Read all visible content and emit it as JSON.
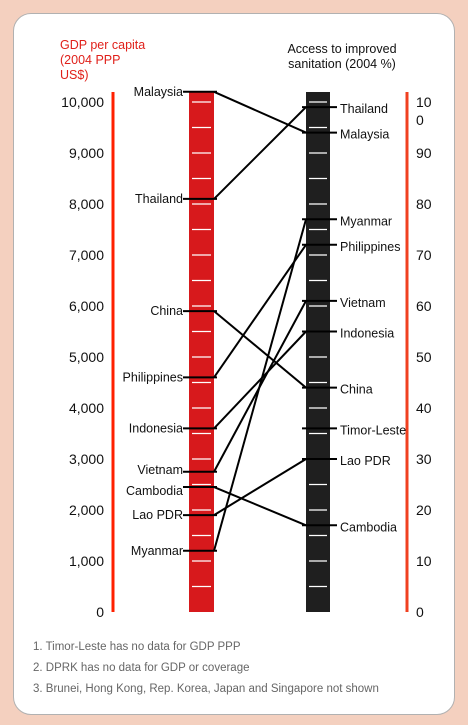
{
  "colors": {
    "gdp_bar": "#d7191c",
    "gdp_axis": "#ff2000",
    "gdp_title": "#e0201a",
    "sanitation_bar": "#1f1f1f",
    "sanitation_axis": "#f04020",
    "link": "#000000",
    "background": "#f4d0bf"
  },
  "chart_data": {
    "type": "parallel-axis",
    "left_axis": {
      "title": "GDP per capita (2004 PPP US$)",
      "ylim": [
        0,
        10000
      ],
      "ticks": [
        "0",
        "1,000",
        "2,000",
        "3,000",
        "4,000",
        "5,000",
        "6,000",
        "7,000",
        "8,000",
        "9,000",
        "10,000"
      ]
    },
    "right_axis": {
      "title": "Access to improved sanitation (2004 %)",
      "ylim": [
        0,
        100
      ],
      "ticks": [
        "0",
        "10",
        "20",
        "30",
        "40",
        "50",
        "60",
        "70",
        "80",
        "90",
        "10\n0"
      ]
    },
    "countries": [
      {
        "name": "Malaysia",
        "gdp": 10200,
        "sanitation": 94
      },
      {
        "name": "Thailand",
        "gdp": 8100,
        "sanitation": 99
      },
      {
        "name": "China",
        "gdp": 5900,
        "sanitation": 44
      },
      {
        "name": "Philippines",
        "gdp": 4600,
        "sanitation": 72
      },
      {
        "name": "Indonesia",
        "gdp": 3600,
        "sanitation": 55
      },
      {
        "name": "Vietnam",
        "gdp": 2750,
        "sanitation": 61
      },
      {
        "name": "Cambodia",
        "gdp": 2450,
        "sanitation": 17
      },
      {
        "name": "Lao PDR",
        "gdp": 1900,
        "sanitation": 30
      },
      {
        "name": "Myanmar",
        "gdp": 1200,
        "sanitation": 77
      },
      {
        "name": "Timor-Leste",
        "gdp": null,
        "sanitation": 36
      }
    ],
    "footnotes": [
      "1. Timor-Leste has no data for GDP PPP",
      "2. DPRK has no data for GDP or coverage",
      "3. Brunei, Hong Kong, Rep. Korea, Japan and Singapore not shown"
    ]
  }
}
